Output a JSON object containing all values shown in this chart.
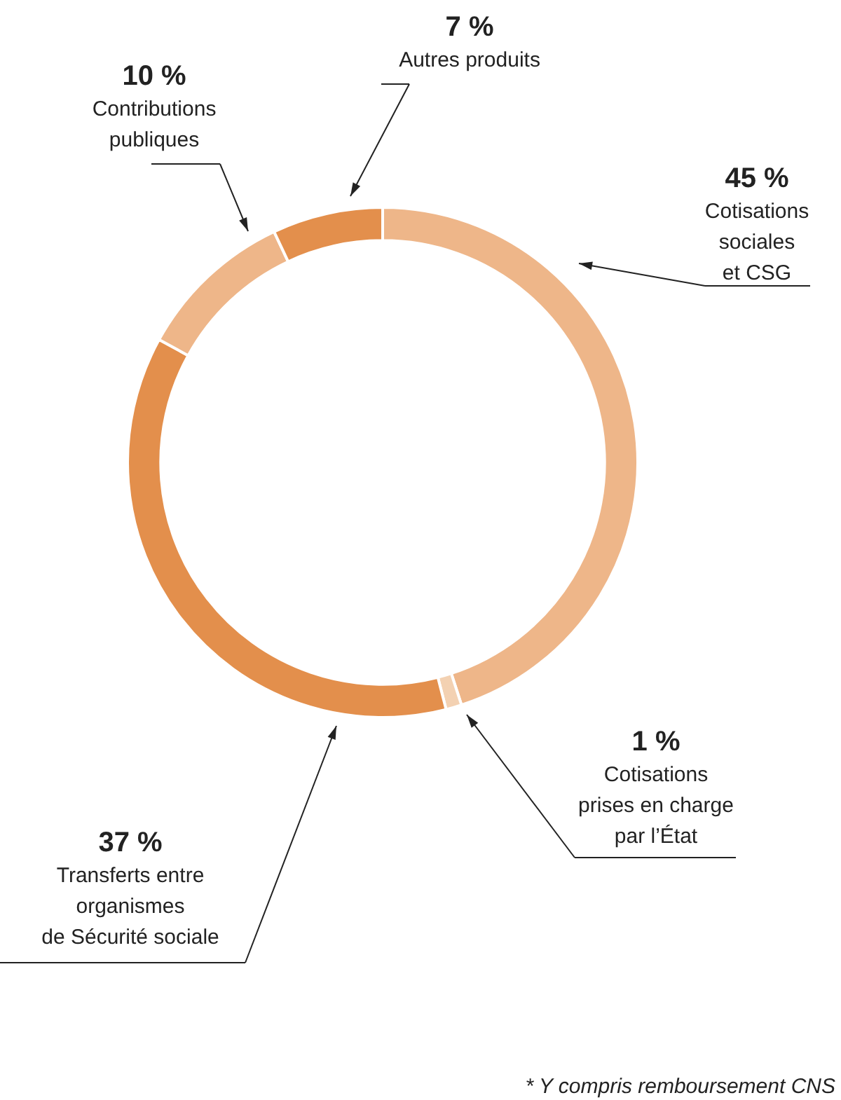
{
  "chart_data": {
    "type": "donut",
    "categories": [
      "Cotisations\nsociales\net CSG",
      "Cotisations\nprises en charge\npar l’État",
      "Transferts entre\norganismes\nde Sécurité sociale",
      "Contributions\npubliques",
      "Autres produits"
    ],
    "values": [
      45,
      1,
      37,
      10,
      7
    ],
    "colors": [
      "#eeb689",
      "#f3d1b2",
      "#e38f4c",
      "#eeb689",
      "#e38f4c"
    ],
    "value_labels": [
      "45 %",
      "1 %",
      "37 %",
      "10 %",
      "7 %"
    ],
    "legend": false,
    "annotations": [
      "* Y compris remboursement CNS"
    ]
  }
}
